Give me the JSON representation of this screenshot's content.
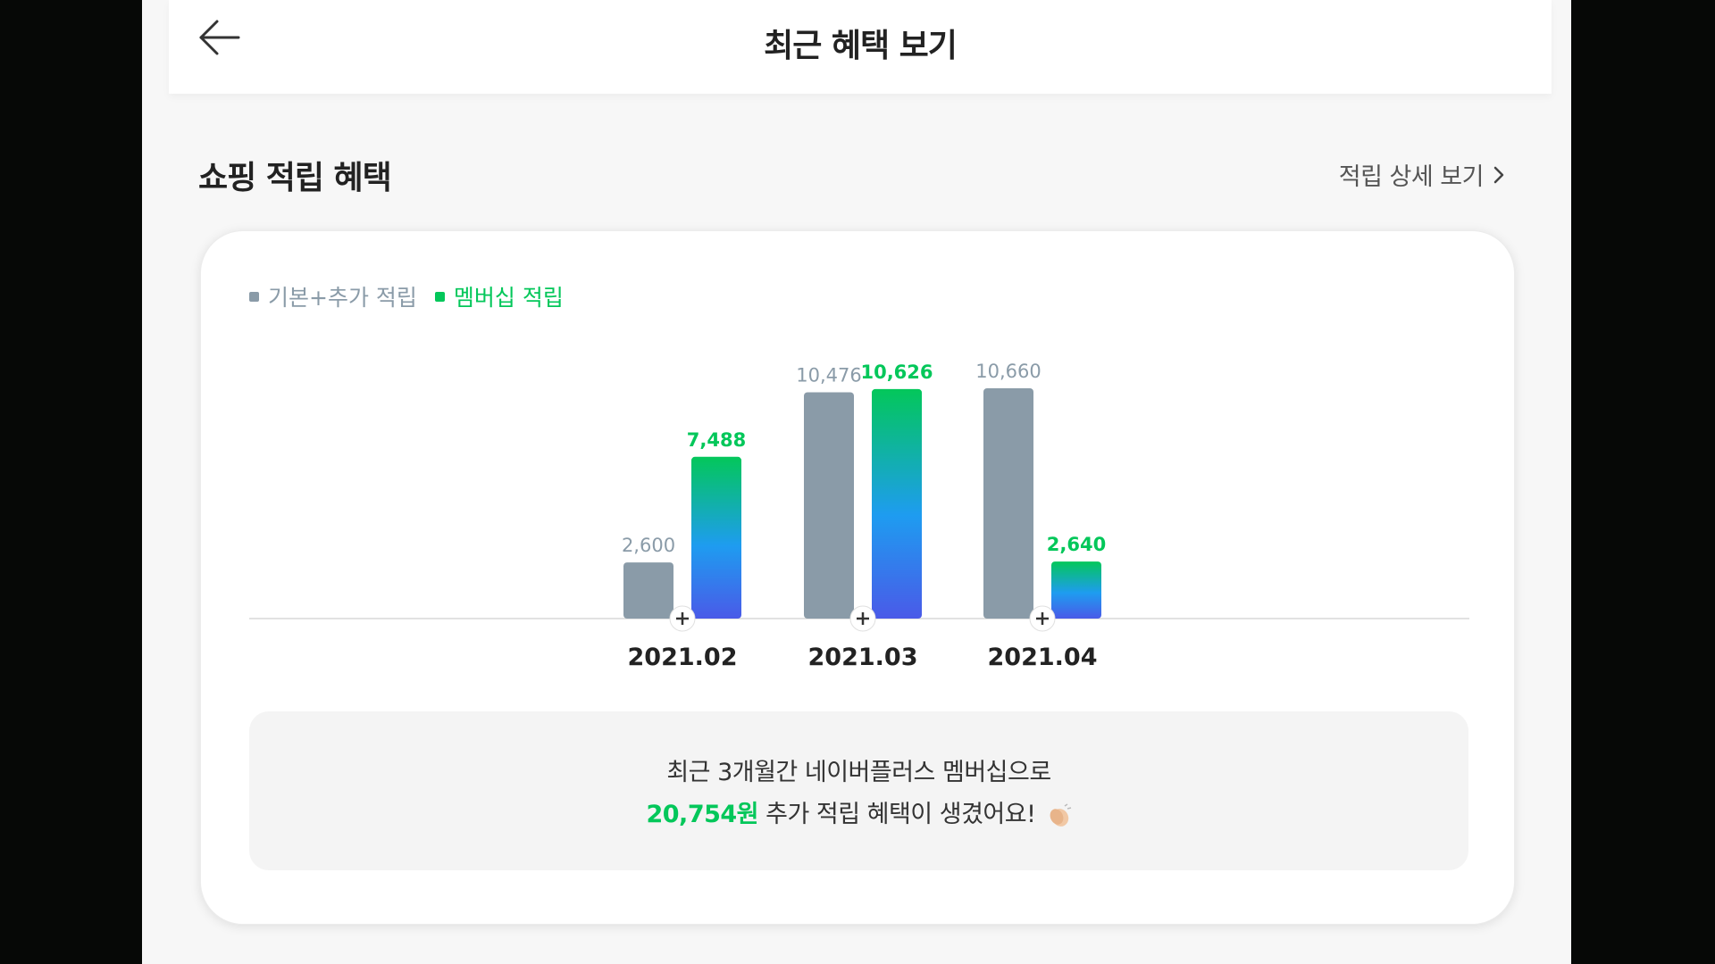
{
  "header": {
    "title": "최근 혜택 보기",
    "back_icon": "arrow-left-icon"
  },
  "section": {
    "title": "쇼핑 적립 혜택",
    "detail_link": "적립 상세 보기",
    "detail_icon": "chevron-right-icon"
  },
  "legend": {
    "base": "기본+추가 적립",
    "membership": "멤버십 적립"
  },
  "colors": {
    "base": "#8a9ba8",
    "membership_top": "#03c75a",
    "membership_mid": "#1e9cf0",
    "membership_bottom": "#4a5ae8",
    "accent": "#03c75a"
  },
  "chart_data": {
    "type": "bar",
    "categories": [
      "2021.02",
      "2021.03",
      "2021.04"
    ],
    "series": [
      {
        "name": "기본+추가 적립",
        "values": [
          2600,
          10476,
          10660
        ],
        "labels": [
          "2,600",
          "10,476",
          "10,660"
        ]
      },
      {
        "name": "멤버십 적립",
        "values": [
          7488,
          10626,
          2640
        ],
        "labels": [
          "7,488",
          "10,626",
          "2,640"
        ]
      }
    ],
    "title": "",
    "xlabel": "",
    "ylabel": "",
    "ylim": [
      0,
      10660
    ],
    "grid": false,
    "legend": "top-left"
  },
  "summary": {
    "line1": "최근 3개월간 네이버플러스 멤버십으로",
    "amount": "20,754원",
    "line2_rest": " 추가 적립 혜택이 생겼어요!",
    "emoji_icon": "clapping-hands-icon"
  }
}
